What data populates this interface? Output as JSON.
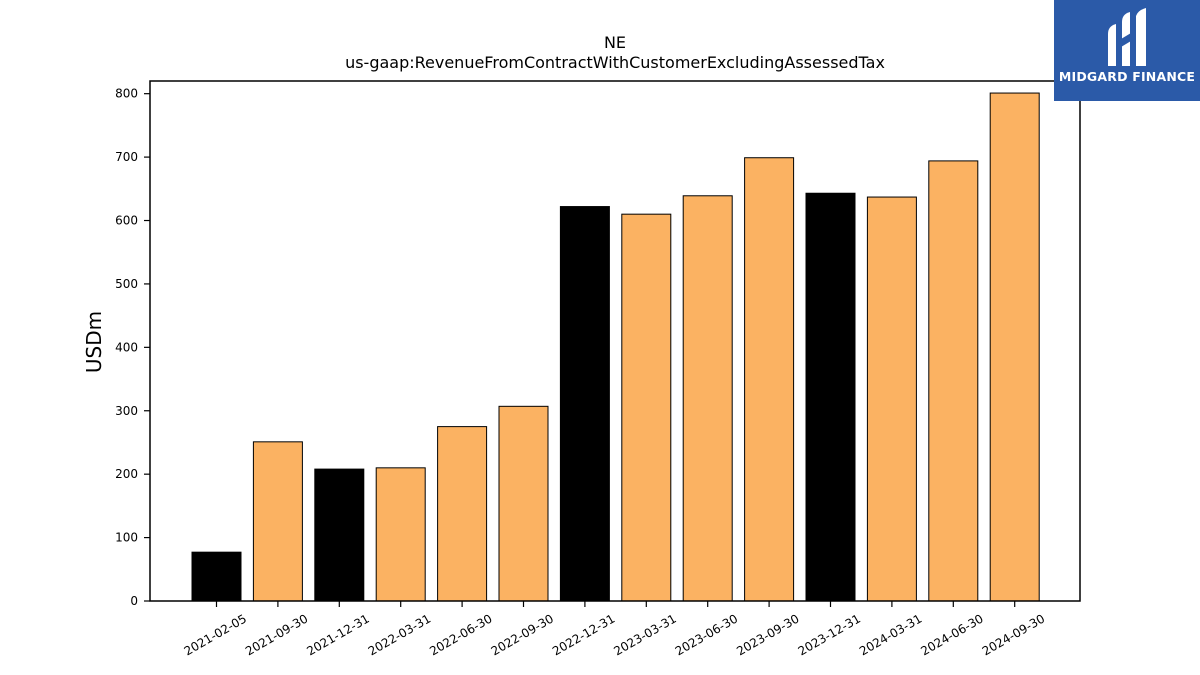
{
  "chart_data": {
    "type": "bar",
    "title": "NE",
    "subtitle": "us-gaap:RevenueFromContractWithCustomerExcludingAssessedTax",
    "xlabel": "",
    "ylabel": "USDm",
    "ylim": [
      0,
      820
    ],
    "yticks": [
      0,
      100,
      200,
      300,
      400,
      500,
      600,
      700,
      800
    ],
    "grid": false,
    "categories": [
      "2021-02-05",
      "2021-09-30",
      "2021-12-31",
      "2022-03-31",
      "2022-06-30",
      "2022-09-30",
      "2022-12-31",
      "2023-03-31",
      "2023-06-30",
      "2023-09-30",
      "2023-12-31",
      "2024-03-31",
      "2024-06-30",
      "2024-09-30"
    ],
    "values": [
      77,
      251,
      208,
      210,
      275,
      307,
      622,
      610,
      639,
      699,
      643,
      637,
      694,
      801
    ],
    "bar_colors": [
      "#000000",
      "#fbb262",
      "#000000",
      "#fbb262",
      "#fbb262",
      "#fbb262",
      "#000000",
      "#fbb262",
      "#fbb262",
      "#fbb262",
      "#000000",
      "#fbb262",
      "#fbb262",
      "#fbb262"
    ]
  },
  "logo": {
    "text": "MIDGARD FINANCE",
    "icon": "midgard-logo-icon",
    "color": "#2b5aa8"
  }
}
